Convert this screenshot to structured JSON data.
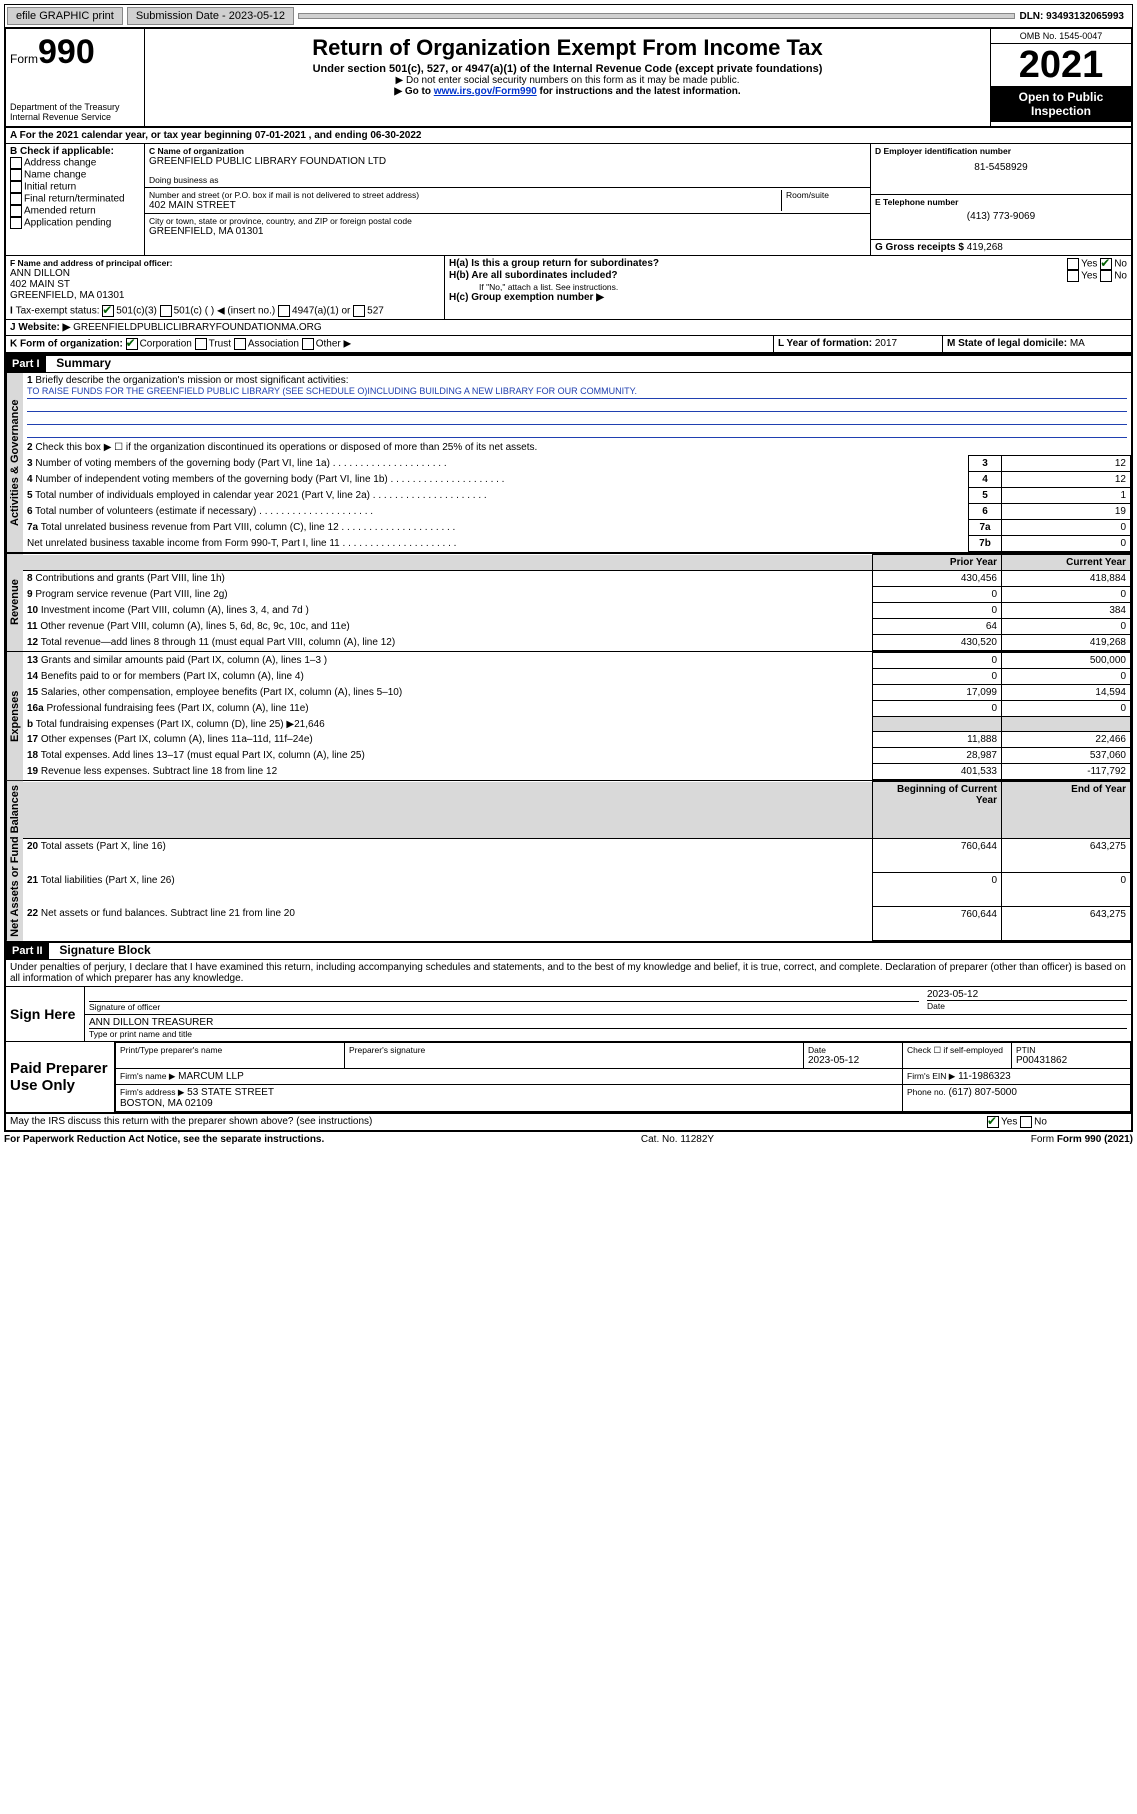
{
  "topbar": {
    "efile": "efile GRAPHIC print",
    "submission_label": "Submission Date - 2023-05-12",
    "dln": "DLN: 93493132065993"
  },
  "header": {
    "form_prefix": "Form",
    "form_number": "990",
    "title": "Return of Organization Exempt From Income Tax",
    "subtitle": "Under section 501(c), 527, or 4947(a)(1) of the Internal Revenue Code (except private foundations)",
    "note1": "▶ Do not enter social security numbers on this form as it may be made public.",
    "note2_pre": "▶ Go to ",
    "note2_link": "www.irs.gov/Form990",
    "note2_post": " for instructions and the latest information.",
    "dept": "Department of the Treasury\nInternal Revenue Service",
    "omb": "OMB No. 1545-0047",
    "year": "2021",
    "open": "Open to Public Inspection"
  },
  "lineA": {
    "text_pre": "For the 2021 calendar year, or tax year beginning ",
    "begin": "07-01-2021",
    "mid": " , and ending ",
    "end": "06-30-2022"
  },
  "boxB": {
    "label": "B Check if applicable:",
    "items": [
      "Address change",
      "Name change",
      "Initial return",
      "Final return/terminated",
      "Amended return",
      "Application pending"
    ]
  },
  "boxC": {
    "name_label": "C Name of organization",
    "name": "GREENFIELD PUBLIC LIBRARY FOUNDATION LTD",
    "dba_label": "Doing business as",
    "addr_label": "Number and street (or P.O. box if mail is not delivered to street address)",
    "room_label": "Room/suite",
    "addr": "402 MAIN STREET",
    "city_label": "City or town, state or province, country, and ZIP or foreign postal code",
    "city": "GREENFIELD, MA  01301"
  },
  "boxD": {
    "label": "D Employer identification number",
    "value": "81-5458929"
  },
  "boxE": {
    "label": "E Telephone number",
    "value": "(413) 773-9069"
  },
  "boxG": {
    "label": "G Gross receipts $",
    "value": "419,268"
  },
  "boxF": {
    "label": "F Name and address of principal officer:",
    "name": "ANN DILLON",
    "addr": "402 MAIN ST",
    "city": "GREENFIELD, MA  01301"
  },
  "boxH": {
    "a_label": "H(a)  Is this a group return for subordinates?",
    "b_label": "H(b)  Are all subordinates included?",
    "b_note": "If \"No,\" attach a list. See instructions.",
    "c_label": "H(c)  Group exemption number ▶",
    "yes": "Yes",
    "no": "No"
  },
  "boxI": {
    "label": "Tax-exempt status:",
    "opts": [
      "501(c)(3)",
      "501(c) (  ) ◀ (insert no.)",
      "4947(a)(1) or",
      "527"
    ]
  },
  "boxJ": {
    "label": "Website: ▶",
    "value": "GREENFIELDPUBLICLIBRARYFOUNDATIONMA.ORG"
  },
  "boxK": {
    "label": "K Form of organization:",
    "opts": [
      "Corporation",
      "Trust",
      "Association",
      "Other ▶"
    ]
  },
  "boxL": {
    "label": "L Year of formation:",
    "value": "2017"
  },
  "boxM": {
    "label": "M State of legal domicile:",
    "value": "MA"
  },
  "part1": {
    "header": "Part I",
    "title": "Summary",
    "q1_label": "Briefly describe the organization's mission or most significant activities:",
    "q1_text": "TO RAISE FUNDS FOR THE GREENFIELD PUBLIC LIBRARY (SEE SCHEDULE O)INCLUDING BUILDING A NEW LIBRARY FOR OUR COMMUNITY.",
    "q2": "Check this box ▶ ☐ if the organization discontinued its operations or disposed of more than 25% of its net assets.",
    "vlabels": {
      "gov": "Activities & Governance",
      "rev": "Revenue",
      "exp": "Expenses",
      "net": "Net Assets or Fund Balances"
    },
    "gov_rows": [
      {
        "n": "3",
        "t": "Number of voting members of the governing body (Part VI, line 1a)",
        "box": "3",
        "v": "12"
      },
      {
        "n": "4",
        "t": "Number of independent voting members of the governing body (Part VI, line 1b)",
        "box": "4",
        "v": "12"
      },
      {
        "n": "5",
        "t": "Total number of individuals employed in calendar year 2021 (Part V, line 2a)",
        "box": "5",
        "v": "1"
      },
      {
        "n": "6",
        "t": "Total number of volunteers (estimate if necessary)",
        "box": "6",
        "v": "19"
      },
      {
        "n": "7a",
        "t": "Total unrelated business revenue from Part VIII, column (C), line 12",
        "box": "7a",
        "v": "0"
      },
      {
        "n": "",
        "t": "Net unrelated business taxable income from Form 990-T, Part I, line 11",
        "box": "7b",
        "v": "0"
      }
    ],
    "col_headers": {
      "prior": "Prior Year",
      "current": "Current Year",
      "boy": "Beginning of Current Year",
      "eoy": "End of Year"
    },
    "rev_rows": [
      {
        "n": "8",
        "t": "Contributions and grants (Part VIII, line 1h)",
        "p": "430,456",
        "c": "418,884"
      },
      {
        "n": "9",
        "t": "Program service revenue (Part VIII, line 2g)",
        "p": "0",
        "c": "0"
      },
      {
        "n": "10",
        "t": "Investment income (Part VIII, column (A), lines 3, 4, and 7d )",
        "p": "0",
        "c": "384"
      },
      {
        "n": "11",
        "t": "Other revenue (Part VIII, column (A), lines 5, 6d, 8c, 9c, 10c, and 11e)",
        "p": "64",
        "c": "0"
      },
      {
        "n": "12",
        "t": "Total revenue—add lines 8 through 11 (must equal Part VIII, column (A), line 12)",
        "p": "430,520",
        "c": "419,268"
      }
    ],
    "exp_rows": [
      {
        "n": "13",
        "t": "Grants and similar amounts paid (Part IX, column (A), lines 1–3 )",
        "p": "0",
        "c": "500,000"
      },
      {
        "n": "14",
        "t": "Benefits paid to or for members (Part IX, column (A), line 4)",
        "p": "0",
        "c": "0"
      },
      {
        "n": "15",
        "t": "Salaries, other compensation, employee benefits (Part IX, column (A), lines 5–10)",
        "p": "17,099",
        "c": "14,594"
      },
      {
        "n": "16a",
        "t": "Professional fundraising fees (Part IX, column (A), line 11e)",
        "p": "0",
        "c": "0"
      },
      {
        "n": "b",
        "t": "Total fundraising expenses (Part IX, column (D), line 25) ▶21,646",
        "p": "",
        "c": "",
        "shade": true
      },
      {
        "n": "17",
        "t": "Other expenses (Part IX, column (A), lines 11a–11d, 11f–24e)",
        "p": "11,888",
        "c": "22,466"
      },
      {
        "n": "18",
        "t": "Total expenses. Add lines 13–17 (must equal Part IX, column (A), line 25)",
        "p": "28,987",
        "c": "537,060"
      },
      {
        "n": "19",
        "t": "Revenue less expenses. Subtract line 18 from line 12",
        "p": "401,533",
        "c": "-117,792"
      }
    ],
    "net_rows": [
      {
        "n": "20",
        "t": "Total assets (Part X, line 16)",
        "p": "760,644",
        "c": "643,275"
      },
      {
        "n": "21",
        "t": "Total liabilities (Part X, line 26)",
        "p": "0",
        "c": "0"
      },
      {
        "n": "22",
        "t": "Net assets or fund balances. Subtract line 21 from line 20",
        "p": "760,644",
        "c": "643,275"
      }
    ]
  },
  "part2": {
    "header": "Part II",
    "title": "Signature Block",
    "decl": "Under penalties of perjury, I declare that I have examined this return, including accompanying schedules and statements, and to the best of my knowledge and belief, it is true, correct, and complete. Declaration of preparer (other than officer) is based on all information of which preparer has any knowledge.",
    "sign_here": "Sign Here",
    "sig_officer": "Signature of officer",
    "sig_date": "Date",
    "sig_date_val": "2023-05-12",
    "officer_name": "ANN DILLON TREASURER",
    "officer_title_label": "Type or print name and title",
    "paid": "Paid Preparer Use Only",
    "prep_name_label": "Print/Type preparer's name",
    "prep_sig_label": "Preparer's signature",
    "prep_date_label": "Date",
    "prep_date_val": "2023-05-12",
    "check_self": "Check ☐ if self-employed",
    "ptin_label": "PTIN",
    "ptin": "P00431862",
    "firm_name_label": "Firm's name    ▶",
    "firm_name": "MARCUM LLP",
    "firm_ein_label": "Firm's EIN ▶",
    "firm_ein": "11-1986323",
    "firm_addr_label": "Firm's address ▶",
    "firm_addr": "53 STATE STREET\nBOSTON, MA  02109",
    "phone_label": "Phone no.",
    "phone": "(617) 807-5000",
    "discuss": "May the IRS discuss this return with the preparer shown above? (see instructions)",
    "yes": "Yes",
    "no": "No"
  },
  "footer": {
    "left": "For Paperwork Reduction Act Notice, see the separate instructions.",
    "mid": "Cat. No. 11282Y",
    "right": "Form 990 (2021)"
  }
}
